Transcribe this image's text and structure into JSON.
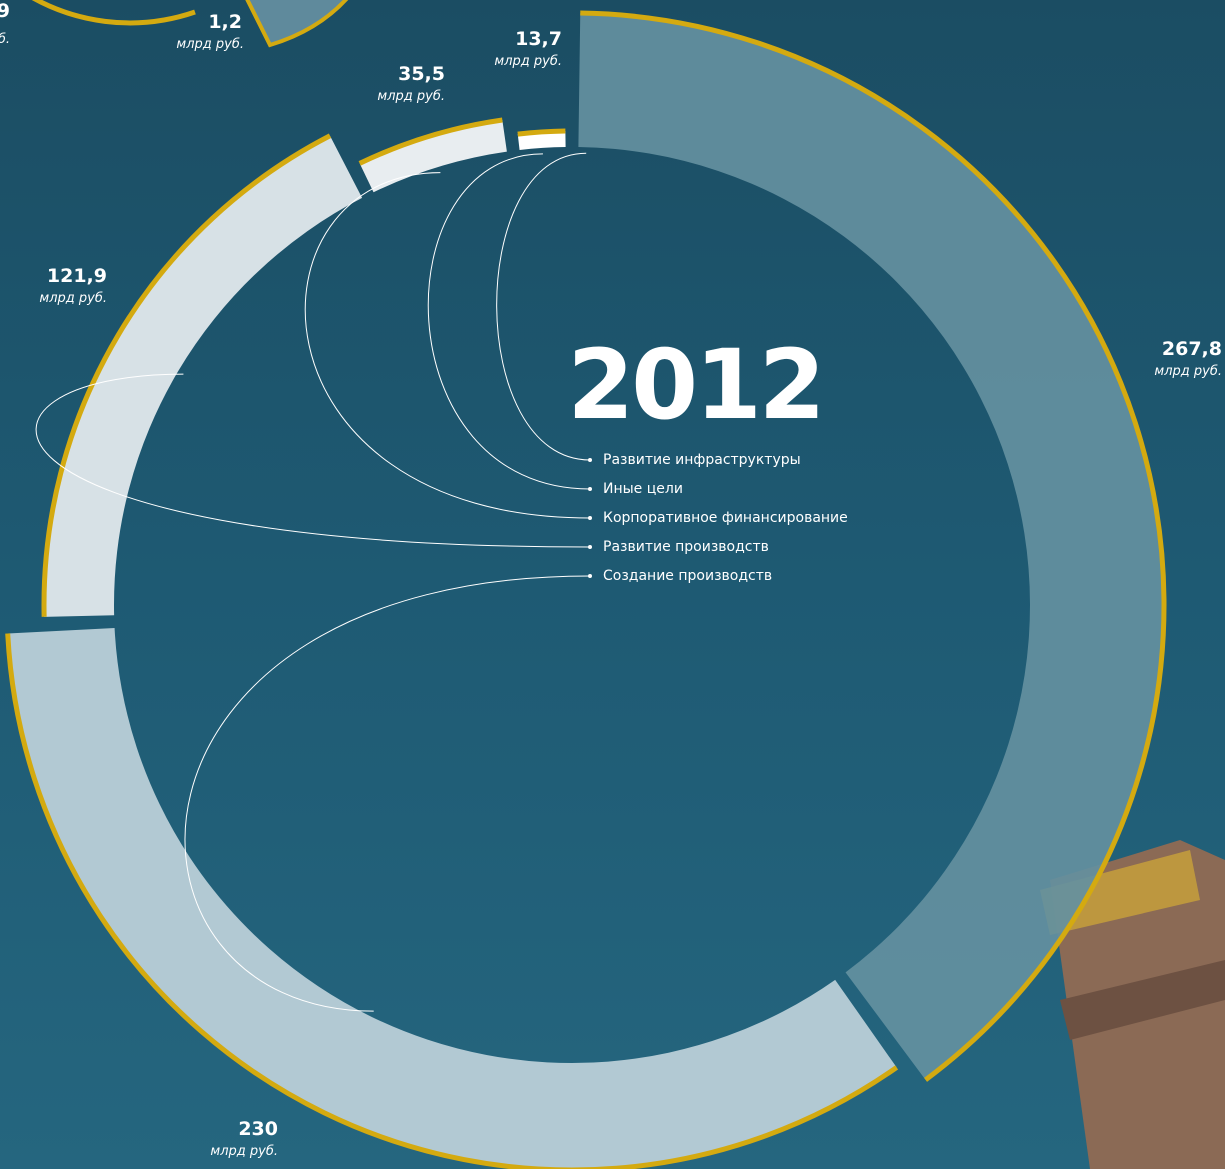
{
  "chart_data": {
    "type": "donut",
    "title": "2012",
    "unit": "млрд руб.",
    "categories": [
      "Развитие инфраструктуры",
      "Создание производств",
      "Развитие производств",
      "Корпоративное финансирование",
      "Иные цели"
    ],
    "values": [
      267.8,
      230,
      121.9,
      35.5,
      13.7
    ],
    "value_labels": [
      "267,8",
      "230",
      "121,9",
      "35,5",
      "13,7"
    ],
    "colors": [
      "#64909f",
      "#b2c9d3",
      "#d7e1e6",
      "#e8edf0",
      "#ffffff"
    ],
    "legend": [
      "Развитие инфраструктуры",
      "Иные цели",
      "Корпоративное финансирование",
      "Развитие производств",
      "Создание производств"
    ],
    "border_color": "#d4aa10"
  },
  "fragment": {
    "labels": [
      {
        "value": "1,2",
        "unit": "млрд руб."
      },
      {
        "value": "9",
        "unit": "б."
      }
    ]
  }
}
